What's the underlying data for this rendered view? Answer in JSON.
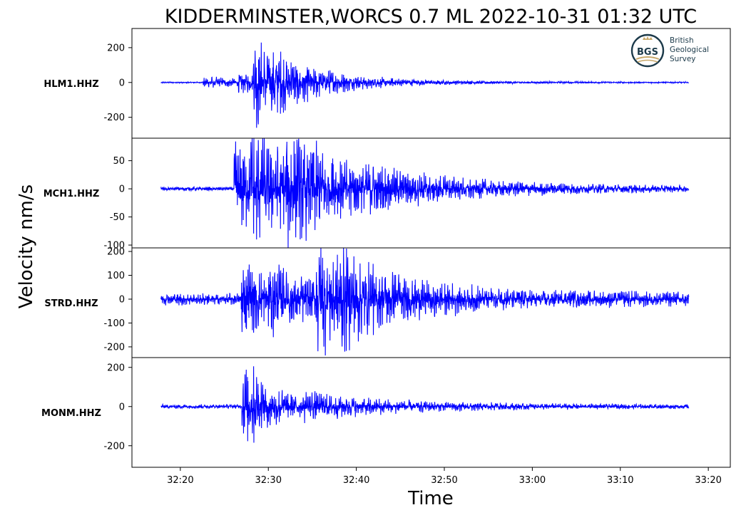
{
  "chart_data": {
    "type": "line",
    "title": "KIDDERMINSTER,WORCS 0.7 ML   2022-10-31 01:32 UTC",
    "xlabel": "Time",
    "ylabel": "Velocity nm/s",
    "x_range_seconds": [
      1934.5,
      2002.5
    ],
    "x_ticks": [
      "32:20",
      "32:30",
      "32:40",
      "32:50",
      "33:00",
      "33:10",
      "33:20"
    ],
    "line_color": "#0000ff",
    "series": [
      {
        "name": "HLM1.HHZ",
        "ylim": [
          -320,
          310
        ],
        "y_ticks": [
          200,
          0,
          -200
        ],
        "y_tick_labels": [
          "200",
          "0",
          "-200"
        ],
        "start_s": 1937.8,
        "end_s": 1997.8,
        "noise_amp": 4,
        "bursts": [
          {
            "t": 1942.6,
            "amp": 38,
            "decay": 6
          },
          {
            "t": 1946.6,
            "amp": 45,
            "decay": 10
          },
          {
            "t": 1948.3,
            "amp": 260,
            "decay": 3.5
          },
          {
            "t": 1950.5,
            "amp": 70,
            "decay": 8
          }
        ]
      },
      {
        "name": "MCH1.HHZ",
        "ylim": [
          -105,
          90
        ],
        "y_ticks": [
          50,
          0,
          -50,
          -100
        ],
        "y_tick_labels": [
          "50",
          "0",
          "-50",
          "-100"
        ],
        "start_s": 1937.8,
        "end_s": 1997.8,
        "noise_amp": 4,
        "bursts": [
          {
            "t": 1946.1,
            "amp": 95,
            "decay": 5
          },
          {
            "t": 1948.0,
            "amp": 60,
            "decay": 12
          },
          {
            "t": 1952.0,
            "amp": 45,
            "decay": 14
          }
        ]
      },
      {
        "name": "STRD.HHZ",
        "ylim": [
          -245,
          215
        ],
        "y_ticks": [
          200,
          100,
          0,
          -100,
          -200
        ],
        "y_tick_labels": [
          "200",
          "100",
          "0",
          "-100",
          "-200"
        ],
        "start_s": 1937.8,
        "end_s": 1997.8,
        "noise_amp": 28,
        "bursts": [
          {
            "t": 1946.9,
            "amp": 185,
            "decay": 4
          },
          {
            "t": 1950.0,
            "amp": 90,
            "decay": 8
          },
          {
            "t": 1955.4,
            "amp": 210,
            "decay": 5
          },
          {
            "t": 1958.0,
            "amp": 70,
            "decay": 15
          }
        ]
      },
      {
        "name": "MONM.HHZ",
        "ylim": [
          -310,
          250
        ],
        "y_ticks": [
          200,
          0,
          -200
        ],
        "y_tick_labels": [
          "200",
          "0",
          "-200"
        ],
        "start_s": 1937.8,
        "end_s": 1997.8,
        "noise_amp": 12,
        "bursts": [
          {
            "t": 1947.0,
            "amp": 270,
            "decay": 2.5
          },
          {
            "t": 1948.0,
            "amp": 55,
            "decay": 10
          },
          {
            "t": 1954.0,
            "amp": 40,
            "decay": 12
          }
        ]
      }
    ]
  },
  "logo": {
    "abbr": "BGS",
    "line1": "British",
    "line2": "Geological",
    "line3": "Survey",
    "ring_color": "#1c3a4a",
    "accent_color": "#c7a86a"
  }
}
